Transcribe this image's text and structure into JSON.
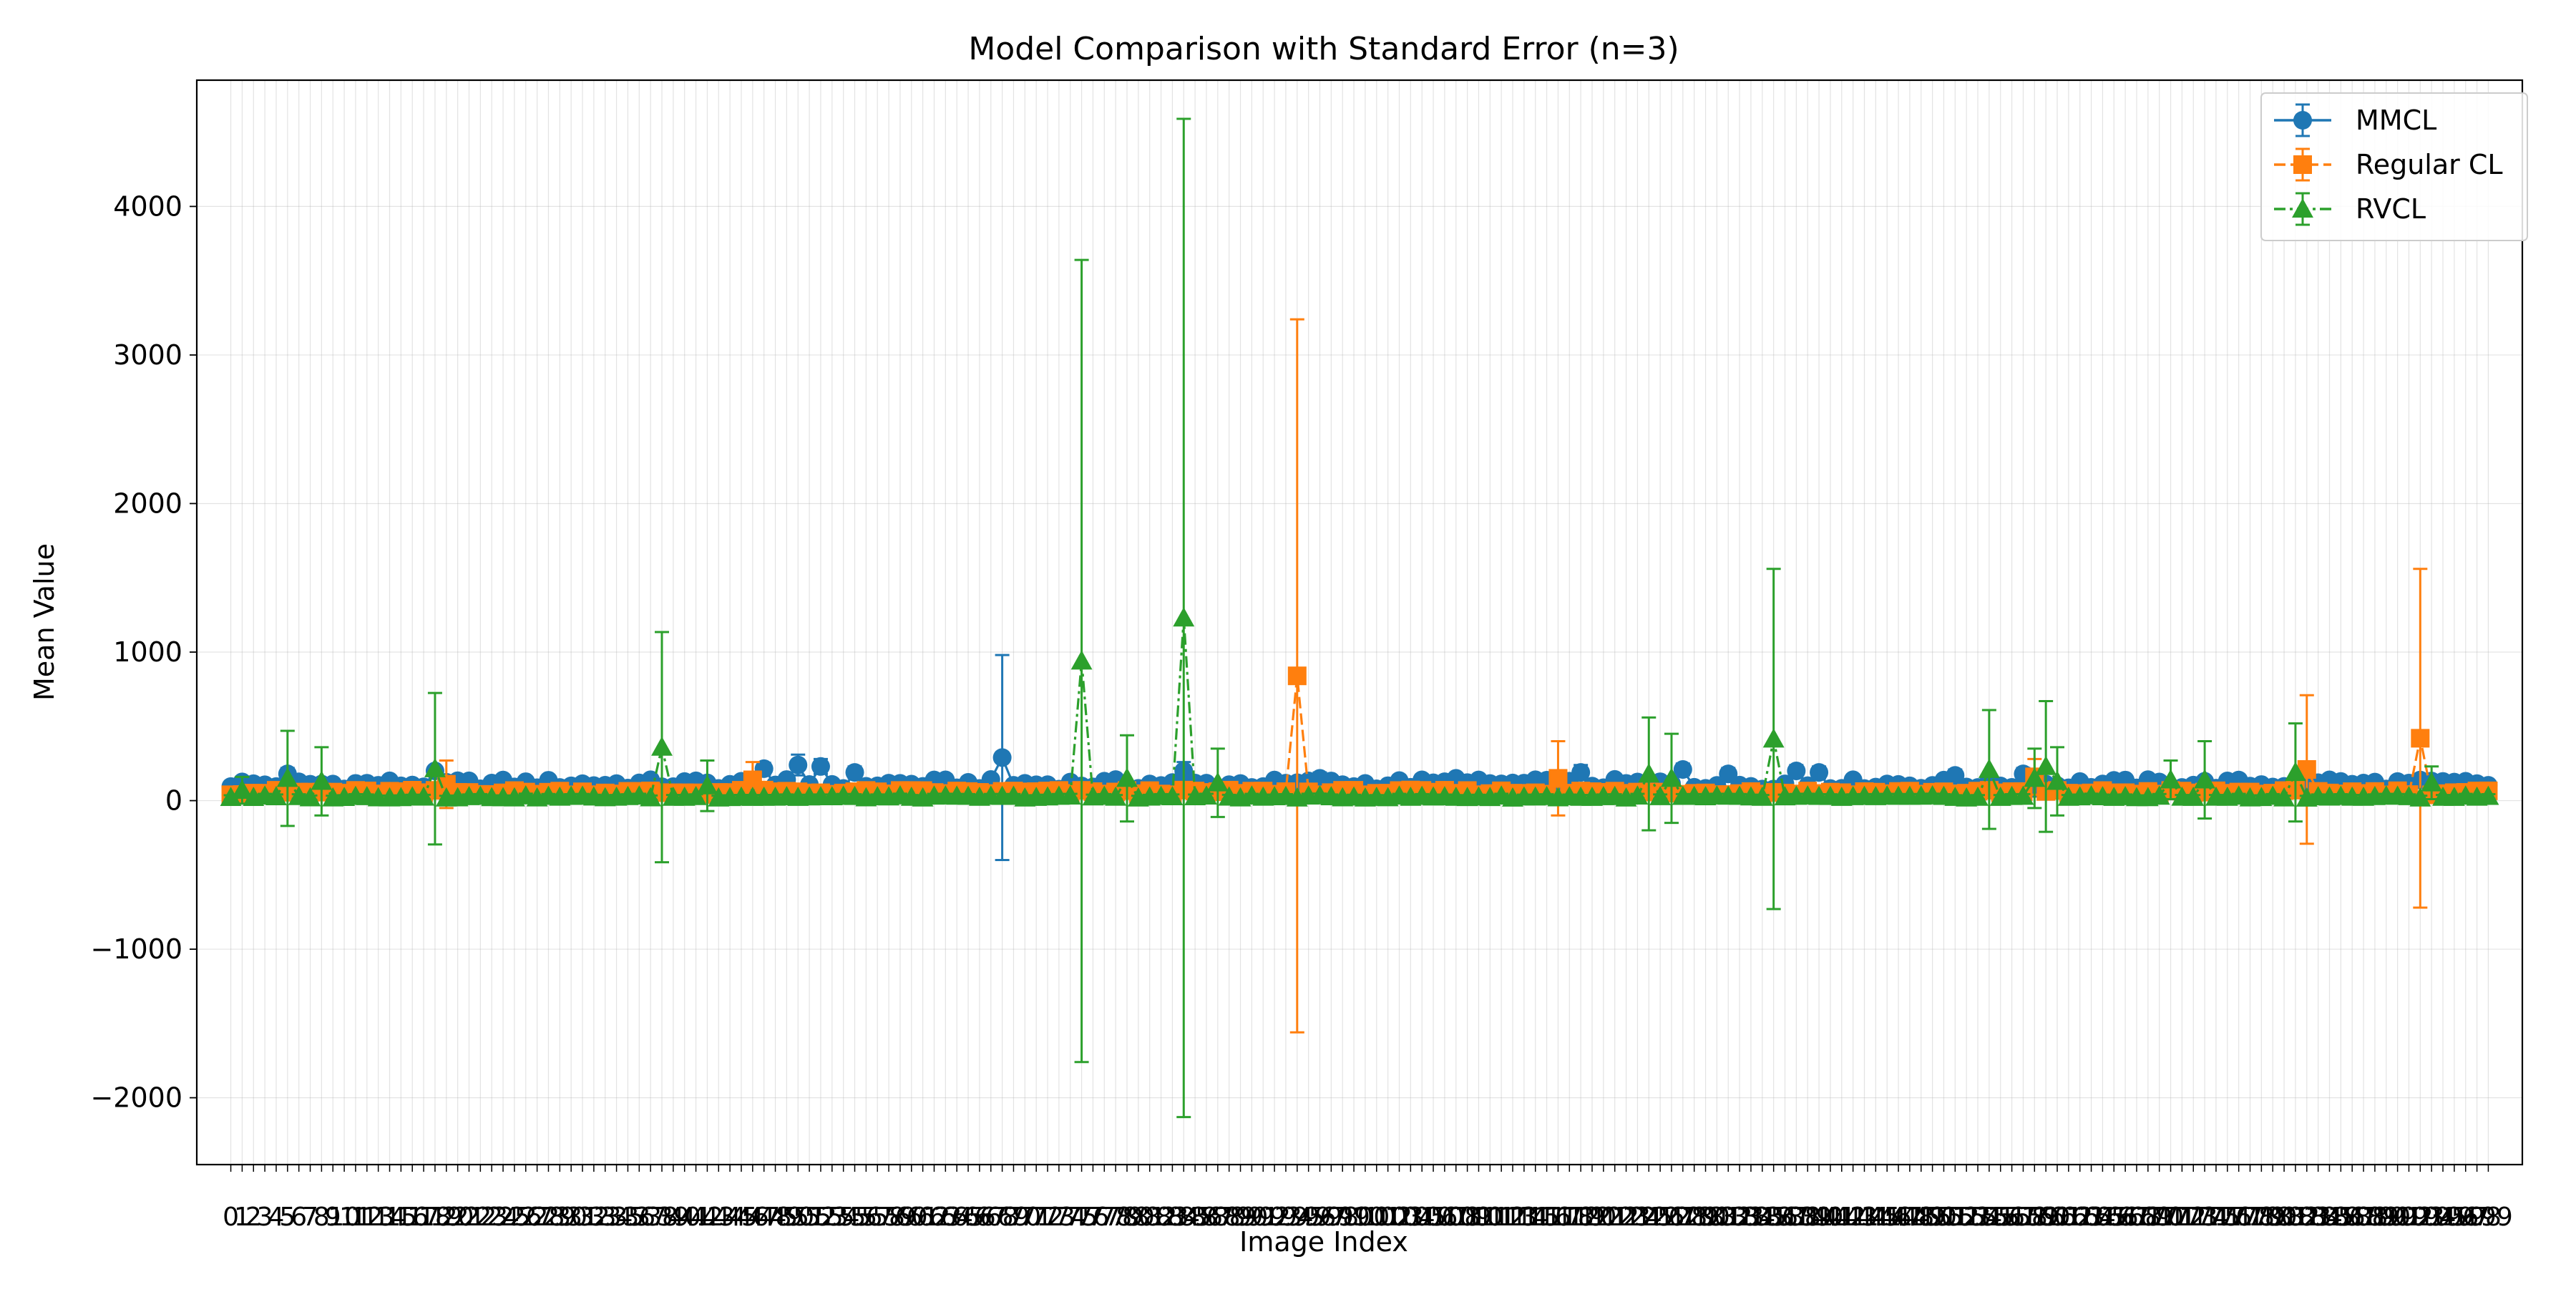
{
  "chart_data": {
    "type": "line",
    "title": "Model Comparison with Standard Error (n=3)",
    "xlabel": "Image Index",
    "ylabel": "Mean Value",
    "xlim": [
      -3,
      202
    ],
    "ylim": [
      -2450,
      4850
    ],
    "yticks": [
      -2000,
      -1000,
      0,
      1000,
      2000,
      3000,
      4000
    ],
    "grid": true,
    "legend_position": "top-right",
    "categories_range": [
      0,
      199
    ],
    "series": [
      {
        "name": "MMCL",
        "color": "#1f77b4",
        "marker": "circle",
        "linestyle": "solid",
        "baseline": 110,
        "baseline_err": 25,
        "points": [
          [
            0,
            95,
            20
          ],
          [
            5,
            180,
            40
          ],
          [
            18,
            200,
            30
          ],
          [
            47,
            215,
            40
          ],
          [
            50,
            240,
            70
          ],
          [
            52,
            230,
            50
          ],
          [
            55,
            190,
            40
          ],
          [
            68,
            290,
            690
          ],
          [
            84,
            200,
            60
          ],
          [
            96,
            150,
            40
          ],
          [
            105,
            140,
            30
          ],
          [
            108,
            150,
            30
          ],
          [
            119,
            190,
            50
          ],
          [
            128,
            210,
            40
          ],
          [
            132,
            180,
            40
          ],
          [
            138,
            200,
            40
          ],
          [
            140,
            190,
            40
          ],
          [
            152,
            170,
            40
          ],
          [
            158,
            180,
            40
          ],
          [
            185,
            140,
            30
          ]
        ]
      },
      {
        "name": "Regular CL",
        "color": "#ff7f0e",
        "marker": "square",
        "linestyle": "dashed",
        "baseline": 55,
        "baseline_err": 20,
        "points": [
          [
            19,
            110,
            160
          ],
          [
            46,
            140,
            120
          ],
          [
            94,
            840,
            2400
          ],
          [
            117,
            150,
            250
          ],
          [
            159,
            160,
            120
          ],
          [
            183,
            210,
            500
          ],
          [
            193,
            420,
            1140
          ]
        ]
      },
      {
        "name": "RVCL",
        "color": "#2ca02c",
        "marker": "triangle",
        "linestyle": "dashdot",
        "baseline": 25,
        "baseline_err": 15,
        "points": [
          [
            1,
            70,
            90
          ],
          [
            5,
            150,
            320
          ],
          [
            8,
            130,
            230
          ],
          [
            18,
            215,
            510
          ],
          [
            38,
            360,
            775
          ],
          [
            42,
            100,
            170
          ],
          [
            75,
            940,
            2700
          ],
          [
            79,
            150,
            290
          ],
          [
            84,
            1230,
            3360
          ],
          [
            87,
            120,
            230
          ],
          [
            125,
            180,
            380
          ],
          [
            127,
            150,
            300
          ],
          [
            136,
            415,
            1145
          ],
          [
            155,
            210,
            400
          ],
          [
            159,
            150,
            200
          ],
          [
            160,
            230,
            440
          ],
          [
            161,
            130,
            230
          ],
          [
            171,
            140,
            130
          ],
          [
            174,
            140,
            260
          ],
          [
            182,
            190,
            330
          ],
          [
            194,
            120,
            110
          ]
        ]
      }
    ]
  }
}
